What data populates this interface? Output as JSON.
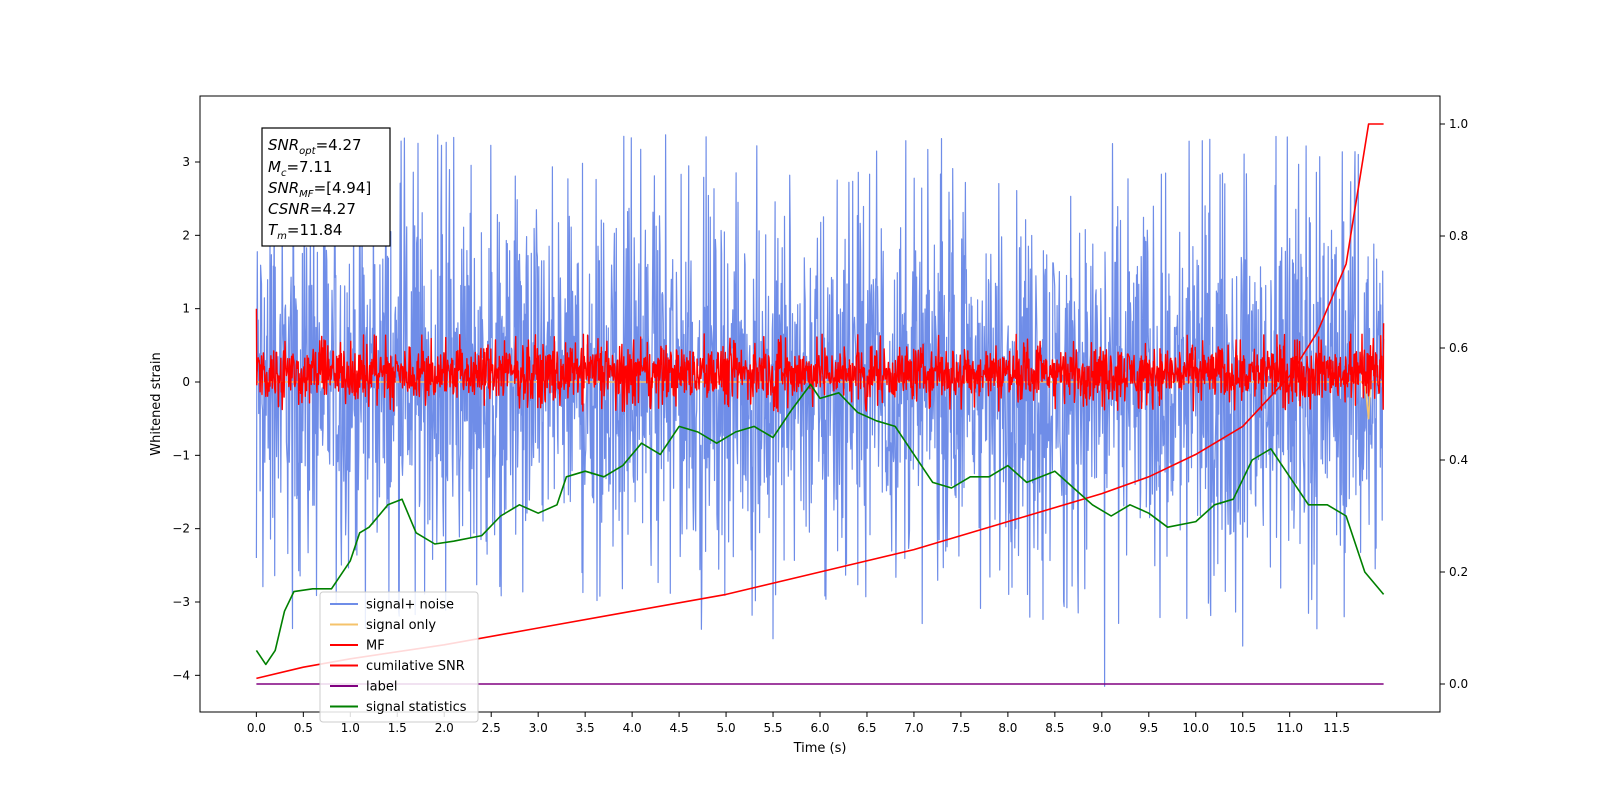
{
  "chart_data": {
    "type": "line",
    "xlabel": "Time (s)",
    "ylabel": "Whitened strain",
    "xlim": [
      -0.6,
      12.6
    ],
    "ylim": [
      -4.5,
      3.9
    ],
    "y2lim": [
      -0.05,
      1.05
    ],
    "xticks": [
      0.0,
      0.5,
      1.0,
      1.5,
      2.0,
      2.5,
      3.0,
      3.5,
      4.0,
      4.5,
      5.0,
      5.5,
      6.0,
      6.5,
      7.0,
      7.5,
      8.0,
      8.5,
      9.0,
      9.5,
      10.0,
      10.5,
      11.0,
      11.5
    ],
    "xtick_labels": [
      "0.0",
      "0.5",
      "1.0",
      "1.5",
      "2.0",
      "2.5",
      "3.0",
      "3.5",
      "4.0",
      "4.5",
      "5.0",
      "5.5",
      "6.0",
      "6.5",
      "7.0",
      "7.5",
      "8.0",
      "8.5",
      "9.0",
      "9.5",
      "10.0",
      "10.5",
      "11.0",
      "11.5"
    ],
    "yticks": [
      3,
      2,
      1,
      0,
      -1,
      -2,
      -3,
      -4
    ],
    "ytick_labels": [
      "3",
      "2",
      "1",
      "0",
      "−1",
      "−2",
      "−3",
      "−4"
    ],
    "y2ticks": [
      1.0,
      0.8,
      0.6,
      0.4,
      0.2,
      0.0
    ],
    "y2tick_labels": [
      "1.0",
      "0.8",
      "0.6",
      "0.4",
      "0.2",
      "0.0"
    ],
    "grid": false,
    "legend_position": "lower-left",
    "annotation": {
      "lines": [
        {
          "name": "SNR",
          "sub": "opt",
          "value": "=4.27"
        },
        {
          "name": "M",
          "sub": "c",
          "value": "=7.11"
        },
        {
          "name": "SNR",
          "sub": "MF",
          "value": "=[4.94]"
        },
        {
          "name": "CSNR",
          "sub": "",
          "value": "=4.27"
        },
        {
          "name": "T",
          "sub": "m",
          "value": "=11.84"
        }
      ]
    },
    "series": [
      {
        "name": "signal+ noise",
        "color": "#6f8de8",
        "axis": "left",
        "style": "noise",
        "t_range": [
          0,
          12.0
        ],
        "band": [
          -2.7,
          2.7
        ],
        "extremes": [
          {
            "t": 9.03,
            "y": 3.55
          },
          {
            "t": 9.03,
            "y": -4.15
          },
          {
            "t": 0.0,
            "y": -2.4
          },
          {
            "t": 5.5,
            "y": -3.5
          },
          {
            "t": 10.5,
            "y": -3.6
          }
        ]
      },
      {
        "name": "signal only",
        "color": "#f5c36b",
        "axis": "left",
        "style": "flat",
        "t_range": [
          0,
          12.0
        ],
        "points": [
          [
            0,
            0.0
          ],
          [
            11.8,
            0.0
          ],
          [
            11.84,
            -0.5
          ],
          [
            11.86,
            0.0
          ],
          [
            12.0,
            0.0
          ]
        ]
      },
      {
        "name": "MF",
        "color": "#ff0000",
        "axis": "left",
        "style": "noise",
        "t_range": [
          0,
          12.0
        ],
        "band": [
          -0.3,
          0.55
        ],
        "extremes": [
          {
            "t": 0.0,
            "y": 1.0
          },
          {
            "t": 12.0,
            "y": 0.8
          }
        ]
      },
      {
        "name": "cumilative SNR",
        "color": "#ff0000",
        "axis": "right",
        "style": "curve",
        "points": [
          [
            0,
            0.01
          ],
          [
            0.5,
            0.03
          ],
          [
            1,
            0.045
          ],
          [
            2,
            0.07
          ],
          [
            3,
            0.1
          ],
          [
            4,
            0.13
          ],
          [
            5,
            0.16
          ],
          [
            6,
            0.2
          ],
          [
            7,
            0.24
          ],
          [
            8,
            0.29
          ],
          [
            9,
            0.34
          ],
          [
            9.5,
            0.37
          ],
          [
            10,
            0.41
          ],
          [
            10.5,
            0.46
          ],
          [
            11,
            0.55
          ],
          [
            11.3,
            0.63
          ],
          [
            11.6,
            0.75
          ],
          [
            11.84,
            1.0
          ],
          [
            12.0,
            1.0
          ]
        ]
      },
      {
        "name": "label",
        "color": "#800080",
        "axis": "right",
        "style": "curve",
        "points": [
          [
            0,
            0.0
          ],
          [
            12.0,
            0.0
          ]
        ]
      },
      {
        "name": "signal statistics",
        "color": "#008000",
        "axis": "right",
        "style": "curve",
        "points": [
          [
            0,
            0.06
          ],
          [
            0.1,
            0.035
          ],
          [
            0.2,
            0.06
          ],
          [
            0.3,
            0.13
          ],
          [
            0.4,
            0.165
          ],
          [
            0.6,
            0.17
          ],
          [
            0.8,
            0.17
          ],
          [
            1.0,
            0.22
          ],
          [
            1.1,
            0.27
          ],
          [
            1.2,
            0.28
          ],
          [
            1.4,
            0.32
          ],
          [
            1.55,
            0.33
          ],
          [
            1.7,
            0.27
          ],
          [
            1.9,
            0.25
          ],
          [
            2.1,
            0.255
          ],
          [
            2.4,
            0.265
          ],
          [
            2.6,
            0.3
          ],
          [
            2.8,
            0.32
          ],
          [
            3.0,
            0.305
          ],
          [
            3.2,
            0.32
          ],
          [
            3.3,
            0.37
          ],
          [
            3.5,
            0.38
          ],
          [
            3.7,
            0.37
          ],
          [
            3.9,
            0.39
          ],
          [
            4.1,
            0.43
          ],
          [
            4.3,
            0.41
          ],
          [
            4.5,
            0.46
          ],
          [
            4.7,
            0.45
          ],
          [
            4.9,
            0.43
          ],
          [
            5.1,
            0.45
          ],
          [
            5.3,
            0.46
          ],
          [
            5.5,
            0.44
          ],
          [
            5.7,
            0.49
          ],
          [
            5.9,
            0.535
          ],
          [
            6.0,
            0.51
          ],
          [
            6.2,
            0.52
          ],
          [
            6.4,
            0.485
          ],
          [
            6.6,
            0.47
          ],
          [
            6.8,
            0.46
          ],
          [
            7.0,
            0.41
          ],
          [
            7.2,
            0.36
          ],
          [
            7.4,
            0.35
          ],
          [
            7.6,
            0.37
          ],
          [
            7.8,
            0.37
          ],
          [
            8.0,
            0.39
          ],
          [
            8.2,
            0.36
          ],
          [
            8.5,
            0.38
          ],
          [
            8.7,
            0.35
          ],
          [
            8.9,
            0.32
          ],
          [
            9.1,
            0.3
          ],
          [
            9.3,
            0.32
          ],
          [
            9.5,
            0.305
          ],
          [
            9.7,
            0.28
          ],
          [
            10.0,
            0.29
          ],
          [
            10.2,
            0.32
          ],
          [
            10.4,
            0.33
          ],
          [
            10.6,
            0.4
          ],
          [
            10.8,
            0.42
          ],
          [
            11.0,
            0.37
          ],
          [
            11.2,
            0.32
          ],
          [
            11.4,
            0.32
          ],
          [
            11.6,
            0.3
          ],
          [
            11.8,
            0.2
          ],
          [
            12.0,
            0.16
          ]
        ]
      }
    ]
  }
}
